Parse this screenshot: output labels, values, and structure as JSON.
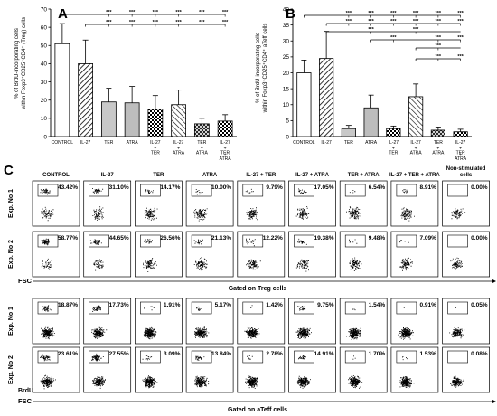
{
  "panelA": {
    "letter": "A",
    "ylabel_line1": "% of BrdU-incorporating cells",
    "ylabel_line2": "within Foxp3⁺CD25⁺CD4⁺ (Treg) cells",
    "sig": "***"
  },
  "panelB": {
    "letter": "B",
    "ylabel_line1": "% of BrdU-incorporating cells",
    "ylabel_line2": "within Foxp3⁻CD25⁺CD4⁺ aTeff cells",
    "sig": "***"
  },
  "chart_data": [
    {
      "type": "bar",
      "panel": "A",
      "categories": [
        "CONTROL",
        "IL-27",
        "TER",
        "ATRA",
        "IL-27 + TER",
        "IL-27 + ATRA",
        "TER + ATRA",
        "IL-27 + TER + ATRA"
      ],
      "values": [
        51,
        40,
        19,
        18.5,
        15,
        17.5,
        7,
        8.5
      ],
      "errors": [
        11,
        13,
        7.5,
        9,
        7.5,
        8,
        3,
        3.5
      ],
      "ylim": [
        0,
        70
      ],
      "yticks": [
        0,
        10,
        20,
        30,
        40,
        50,
        60,
        70
      ]
    },
    {
      "type": "bar",
      "panel": "B",
      "categories": [
        "CONTROL",
        "IL-27",
        "TER",
        "ATRA",
        "IL-27 + TER",
        "IL-27 + ATRA",
        "TER + ATRA",
        "IL-27 + TER + ATRA"
      ],
      "values": [
        20,
        24.5,
        2.5,
        9,
        2.5,
        12.5,
        2,
        1.5
      ],
      "errors": [
        4,
        8.5,
        1,
        4,
        0.8,
        4,
        1,
        0.8
      ],
      "ylim": [
        0,
        40
      ],
      "yticks": [
        0,
        5,
        10,
        15,
        20,
        25,
        30,
        35,
        40
      ]
    }
  ],
  "panelC": {
    "letter": "C",
    "columns": [
      "CONTROL",
      "IL-27",
      "TER",
      "ATRA",
      "IL-27 + TER",
      "IL-27 + ATRA",
      "TER + ATRA",
      "IL-27 + TER + ATRA",
      "Non-stimulated cells"
    ],
    "row_labels": [
      "Exp. No 1",
      "Exp. No 2",
      "Exp. No 1",
      "Exp. No 2"
    ],
    "percentages": [
      [
        "43.42%",
        "31.10%",
        "14.17%",
        "10.00%",
        "9.79%",
        "17.05%",
        "6.54%",
        "8.91%",
        "0.00%"
      ],
      [
        "58.77%",
        "44.65%",
        "26.56%",
        "21.13%",
        "12.22%",
        "19.38%",
        "9.48%",
        "7.09%",
        "0.00%"
      ],
      [
        "18.87%",
        "17.73%",
        "1.91%",
        "5.17%",
        "1.42%",
        "9.75%",
        "1.54%",
        "0.91%",
        "0.05%"
      ],
      [
        "23.61%",
        "27.55%",
        "3.09%",
        "13.84%",
        "2.78%",
        "14.91%",
        "1.70%",
        "1.53%",
        "0.08%"
      ]
    ],
    "fsc_label": "FSC",
    "brdu_label": "BrdU",
    "gated_treg": "Gated on Treg cells",
    "gated_ateff": "Gated on aTeff cells"
  }
}
